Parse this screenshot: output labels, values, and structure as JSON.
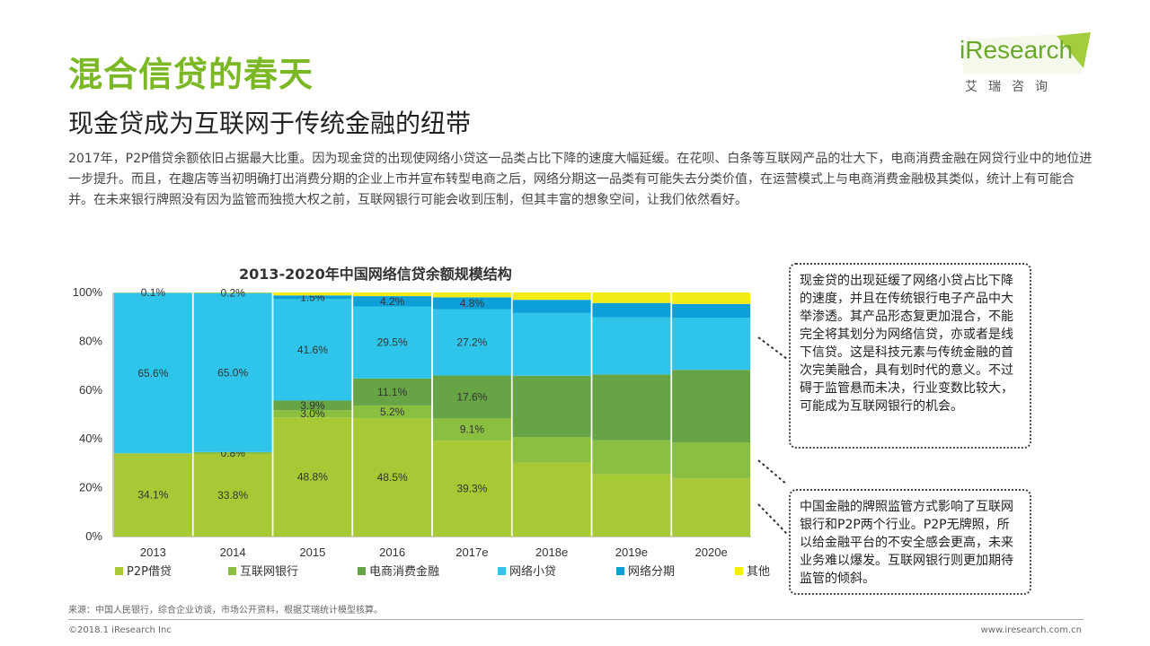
{
  "header": {
    "title": "混合信贷的春天",
    "subtitle": "现金贷成为互联网于传统金融的纽带",
    "intro": "2017年，P2P借贷余额依旧占据最大比重。因为现金贷的出现使网络小贷这一品类占比下降的速度大幅延缓。在花呗、白条等互联网产品的壮大下，电商消费金融在网贷行业中的地位进一步提升。而且，在趣店等当初明确打出消费分期的企业上市并宣布转型电商之后，网络分期这一品类有可能失去分类价值，在运营模式上与电商消费金融极其类似，统计上有可能合并。在未来银行牌照没有因为监管而独揽大权之前，互联网银行可能会收到压制，但其丰富的想象空间，让我们依然看好。"
  },
  "logo": {
    "text": "iResearch",
    "sub": "艾瑞咨询"
  },
  "chart_data": {
    "type": "bar",
    "stacked": true,
    "title": "2013-2020年中国网络信贷余额规模结构",
    "categories": [
      "2013",
      "2014",
      "2015",
      "2016",
      "2017e",
      "2018e",
      "2019e",
      "2020e"
    ],
    "y_ticks": [
      "0%",
      "20%",
      "40%",
      "60%",
      "80%",
      "100%"
    ],
    "ylim": [
      0,
      100
    ],
    "legend_position": "bottom",
    "series": [
      {
        "name": "P2P借贷",
        "color": "#a7c936",
        "values": [
          34.1,
          33.8,
          48.8,
          48.5,
          39.3,
          30.2,
          25.6,
          23.8
        ],
        "labels": [
          "34.1%",
          "33.8%",
          "48.8%",
          "48.5%",
          "39.3%",
          "",
          "",
          ""
        ]
      },
      {
        "name": "互联网银行",
        "color": "#8bbf40",
        "values": [
          0,
          0.8,
          3.0,
          5.2,
          9.1,
          10.6,
          13.8,
          14.8
        ],
        "labels": [
          "",
          "0.8%",
          "3.0%",
          "5.2%",
          "9.1%",
          "",
          "",
          ""
        ]
      },
      {
        "name": "电商消费金融",
        "color": "#67a446",
        "values": [
          0,
          0,
          3.9,
          11.1,
          17.6,
          25.1,
          27.0,
          29.7
        ],
        "labels": [
          "",
          "",
          "3.9%",
          "11.1%",
          "17.6%",
          "",
          "",
          ""
        ]
      },
      {
        "name": "网络小贷",
        "color": "#2fc5eb",
        "values": [
          65.6,
          65.0,
          41.6,
          29.5,
          27.2,
          25.7,
          23.5,
          21.4
        ],
        "labels": [
          "65.6%",
          "65.0%",
          "41.6%",
          "29.5%",
          "27.2%",
          "",
          "",
          ""
        ]
      },
      {
        "name": "网络分期",
        "color": "#0d9fd8",
        "values": [
          0.2,
          0.2,
          1.5,
          4.2,
          4.8,
          5.4,
          5.8,
          5.6
        ],
        "labels": [
          "",
          "",
          "1.5%",
          "4.2%",
          "4.8%",
          "",
          "",
          ""
        ]
      },
      {
        "name": "其他",
        "color": "#f4ec19",
        "values": [
          0.1,
          0.2,
          1.2,
          1.5,
          2.0,
          3.0,
          4.3,
          4.7
        ],
        "labels": [
          "0.1%",
          "0.2%",
          "",
          "",
          "",
          "",
          "",
          ""
        ]
      }
    ]
  },
  "notes": {
    "note1": "现金贷的出现延缓了网络小贷占比下降的速度，并且在传统银行电子产品中大举渗透。其产品形态复更加混合，不能完全将其划分为网络信贷，亦或者是线下信贷。这是科技元素与传统金融的首次完美融合，具有划时代的意义。不过碍于监管悬而未决，行业变数比较大，可能成为互联网银行的机会。",
    "note2": "中国金融的牌照监管方式影响了互联网银行和P2P两个行业。P2P无牌照，所以给金融平台的不安全感会更高，未来业务难以爆发。互联网银行则更加期待监管的倾斜。"
  },
  "footer": {
    "source": "来源：中国人民银行，综合企业访谈，市场公开资料，根据艾瑞统计模型核算。",
    "copyright": "©2018.1 iResearch Inc",
    "site": "www.iresearch.com.cn"
  }
}
